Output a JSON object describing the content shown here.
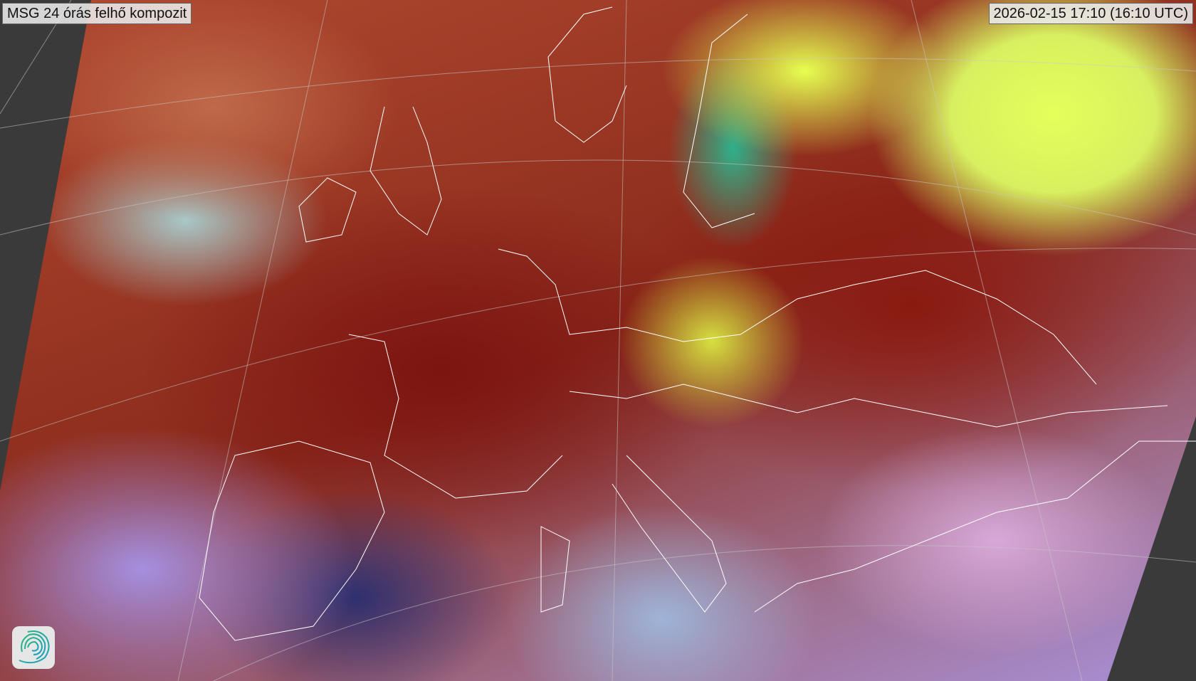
{
  "title": "MSG 24 órás felhő kompozit",
  "timestamp": "2026-02-15 17:10 (16:10 UTC)",
  "logo": {
    "icon": "spiral-logo-icon",
    "colors": [
      "#2bb57d",
      "#1a9fc0"
    ]
  },
  "colors": {
    "background": "#3a3a3a",
    "coastlines": "#ffffff"
  }
}
